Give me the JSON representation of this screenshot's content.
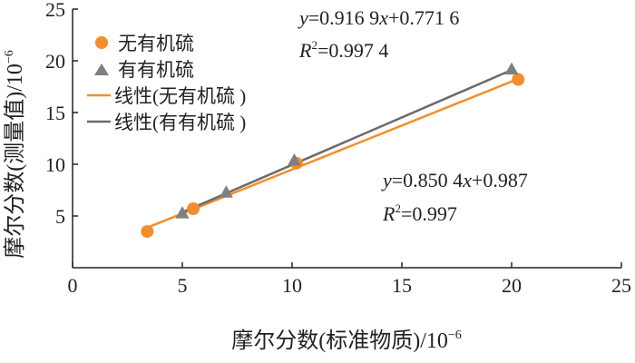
{
  "chart_data": {
    "type": "scatter",
    "xlabel": "摩尔分数(标准物质)/10",
    "xlabel_exp": "−6",
    "ylabel": "摩尔分数(测量值)/10",
    "ylabel_exp": "−6",
    "xlim": [
      0,
      25
    ],
    "ylim": [
      0,
      25
    ],
    "xticks": [
      "0",
      "5",
      "10",
      "15",
      "20",
      "25"
    ],
    "yticks": [
      "5",
      "10",
      "15",
      "20",
      "25"
    ],
    "ytick_values": [
      5,
      10,
      15,
      20,
      25
    ],
    "xtick_values": [
      0,
      5,
      10,
      15,
      20,
      25
    ],
    "grid": false,
    "legend_position": "top-left",
    "series": [
      {
        "name": "无有机硫",
        "marker": "circle",
        "color": "#f28e2b",
        "points": [
          [
            3.4,
            3.5
          ],
          [
            5.5,
            5.7
          ],
          [
            10.2,
            10.1
          ],
          [
            20.3,
            18.2
          ]
        ],
        "fit": {
          "name": "线性(无有机硫 )",
          "slope": 0.8504,
          "intercept": 0.987,
          "x_range": [
            3.4,
            20.3
          ],
          "color": "#f28e2b"
        }
      },
      {
        "name": "有有机硫",
        "marker": "triangle",
        "color": "#7f7f7f",
        "points": [
          [
            5.0,
            5.3
          ],
          [
            7.0,
            7.3
          ],
          [
            10.1,
            10.4
          ],
          [
            20.0,
            19.2
          ]
        ],
        "fit": {
          "name": "线性(有有机硫 )",
          "slope": 0.9169,
          "intercept": 0.7716,
          "x_range": [
            5.0,
            20.0
          ],
          "color": "#6a6a6a"
        }
      }
    ],
    "annotations": [
      {
        "id": "eq-top",
        "line1": "y=0.916 9x+0.771 6",
        "line2": "R2=0.997 4",
        "r2_value": "=0.997 4"
      },
      {
        "id": "eq-bottom",
        "line1": "y=0.850 4x+0.987",
        "line2": "R2=0.997",
        "r2_value": "=0.997"
      }
    ]
  }
}
